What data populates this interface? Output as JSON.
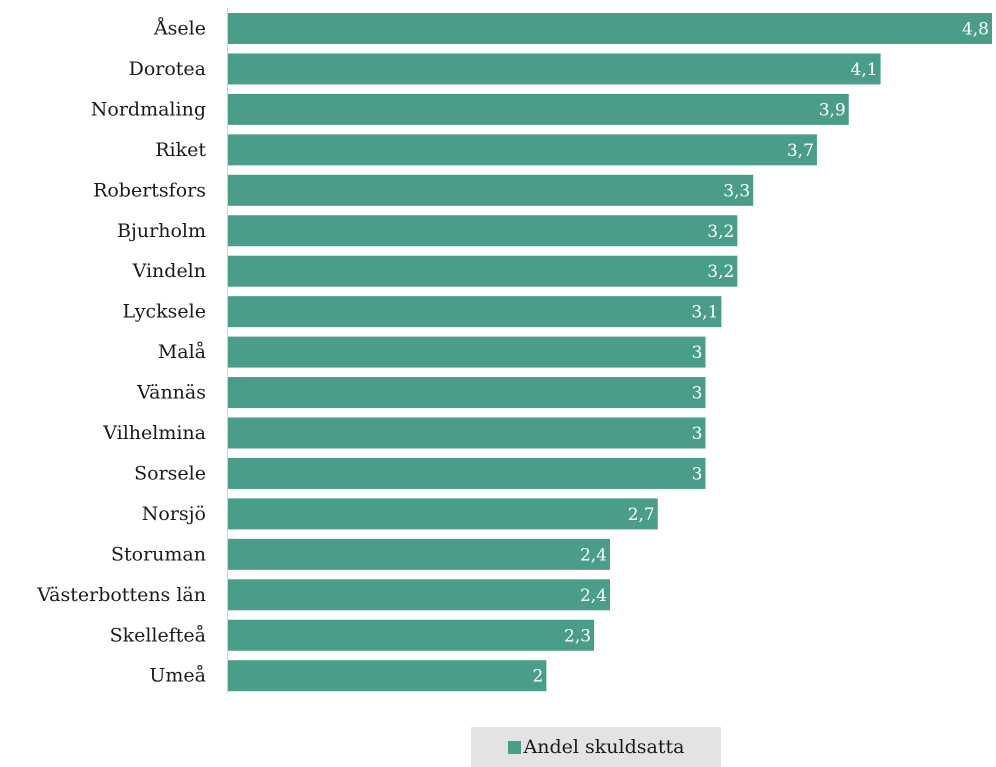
{
  "chart_data": {
    "type": "bar",
    "orientation": "horizontal",
    "categories": [
      "Åsele",
      "Dorotea",
      "Nordmaling",
      "Riket",
      "Robertsfors",
      "Bjurholm",
      "Vindeln",
      "Lycksele",
      "Malå",
      "Vännäs",
      "Vilhelmina",
      "Sorsele",
      "Norsjö",
      "Storuman",
      "Västerbottens län",
      "Skellefteå",
      "Umeå"
    ],
    "series": [
      {
        "name": "Andel skuldsatta",
        "values": [
          4.8,
          4.1,
          3.9,
          3.7,
          3.3,
          3.2,
          3.2,
          3.1,
          3,
          3,
          3,
          3,
          2.7,
          2.4,
          2.4,
          2.3,
          2
        ],
        "value_labels": [
          "4,8",
          "4,1",
          "3,9",
          "3,7",
          "3,3",
          "3,2",
          "3,2",
          "3,1",
          "3",
          "3",
          "3",
          "3",
          "2,7",
          "2,4",
          "2,4",
          "2,3",
          "2"
        ],
        "color": "#4a9d88"
      }
    ],
    "xlim": [
      0,
      4.8
    ],
    "grid": false,
    "legend_position": "bottom"
  },
  "legend": {
    "label": "Andel skuldsatta"
  },
  "colors": {
    "bar": "#4a9d88",
    "axis": "#d0d0d0",
    "legend_bg": "#e3e3e3"
  }
}
